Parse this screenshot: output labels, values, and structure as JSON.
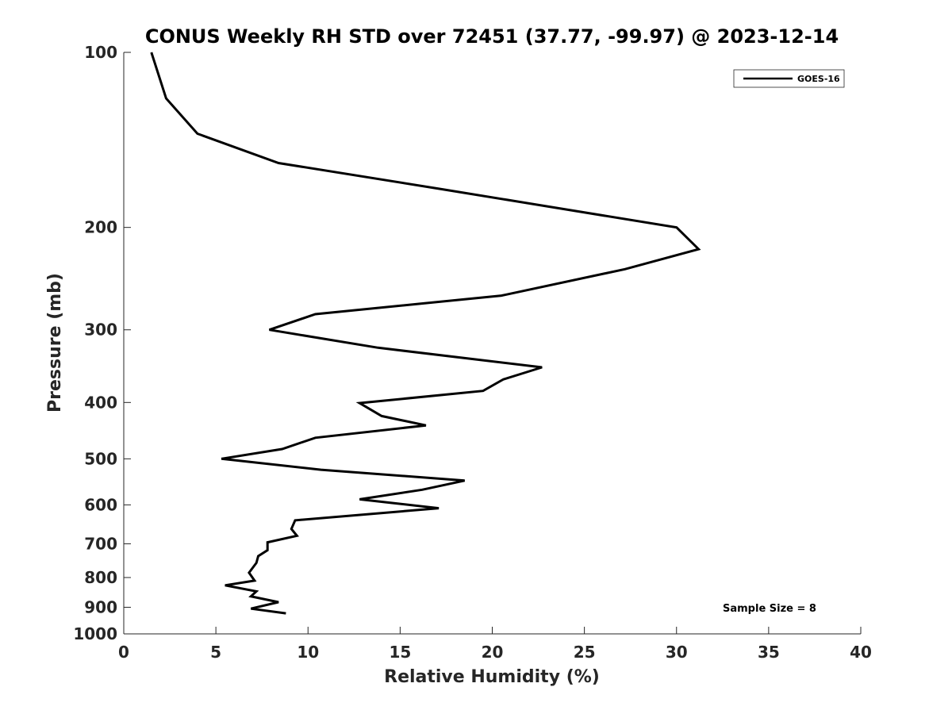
{
  "chart_data": {
    "type": "line",
    "title": "CONUS Weekly RH STD over 72451 (37.77, -99.97) @ 2023-12-14",
    "xlabel": "Relative Humidity (%)",
    "ylabel": "Pressure (mb)",
    "xlim": [
      0,
      40
    ],
    "ylim": [
      100,
      1000
    ],
    "yscale": "log",
    "yreversed": true,
    "x_ticks": [
      0,
      5,
      10,
      15,
      20,
      25,
      30,
      35,
      40
    ],
    "x_tick_labels": [
      "0",
      "5",
      "10",
      "15",
      "20",
      "25",
      "30",
      "35",
      "40"
    ],
    "y_ticks": [
      100,
      200,
      300,
      400,
      500,
      600,
      700,
      800,
      900,
      1000
    ],
    "y_tick_labels": [
      "100",
      "200",
      "300",
      "400",
      "500",
      "600",
      "700",
      "800",
      "900",
      "1000"
    ],
    "grid": false,
    "legend_position": "top-right",
    "line_color": "#000000",
    "series": [
      {
        "name": "GOES-16",
        "x": [
          1.5,
          2.3,
          4.0,
          8.4,
          17.3,
          30.0,
          31.2,
          27.2,
          20.5,
          10.4,
          7.9,
          13.8,
          22.7,
          20.6,
          19.5,
          12.8,
          14.0,
          16.4,
          10.4,
          8.6,
          5.3,
          10.7,
          18.5,
          16.2,
          12.8,
          17.1,
          9.3,
          9.1,
          9.4,
          7.8,
          7.8,
          7.3,
          7.2,
          6.8,
          7.1,
          5.5,
          7.2,
          6.9,
          8.4,
          6.9,
          8.8
        ],
        "y": [
          100,
          120,
          138,
          155,
          172,
          200,
          218,
          236,
          262,
          282,
          300,
          322,
          348,
          365,
          382,
          401,
          422,
          438,
          460,
          481,
          500,
          522,
          545,
          565,
          587,
          608,
          638,
          660,
          678,
          696,
          718,
          735,
          755,
          785,
          810,
          825,
          845,
          862,
          882,
          905,
          922
        ]
      }
    ],
    "annotations": [
      "Sample Size = 8"
    ]
  }
}
